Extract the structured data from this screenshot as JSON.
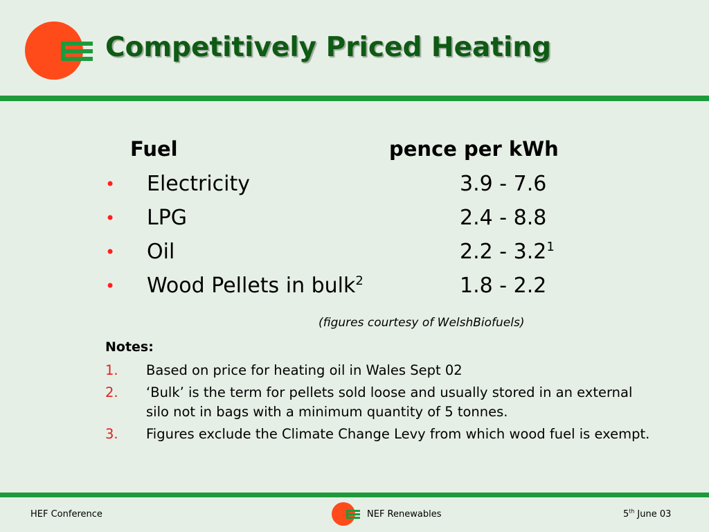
{
  "header": {
    "title": "Competitively Priced Heating"
  },
  "table": {
    "columns": [
      "Fuel",
      "pence per kWh"
    ],
    "rows": [
      {
        "fuel": "Electricity",
        "range": "3.9 - 7.6"
      },
      {
        "fuel": "LPG",
        "range": "2.4 - 8.8"
      },
      {
        "fuel": "Oil",
        "range": "2.2 - 3.2",
        "range_note": "1"
      },
      {
        "fuel": "Wood Pellets in bulk",
        "fuel_note": "2",
        "range": "1.8 - 2.2"
      }
    ],
    "bullet": "•",
    "source": "(figures courtesy of WelshBiofuels)"
  },
  "notes": {
    "title": "Notes:",
    "items": [
      {
        "number": "1.",
        "text": "Based on price for heating oil in Wales Sept 02"
      },
      {
        "number": "2.",
        "text": "‘Bulk’ is the term for pellets sold loose and usually stored in an external silo not in bags with a minimum quantity of 5 tonnes."
      },
      {
        "number": "3.",
        "text": "Figures exclude the Climate Change Levy from which wood fuel is exempt."
      }
    ]
  },
  "footer": {
    "left": "HEF Conference",
    "center": "NEF Renewables",
    "date_day": "5",
    "date_suffix": "th",
    "date_rest": "June 03"
  }
}
